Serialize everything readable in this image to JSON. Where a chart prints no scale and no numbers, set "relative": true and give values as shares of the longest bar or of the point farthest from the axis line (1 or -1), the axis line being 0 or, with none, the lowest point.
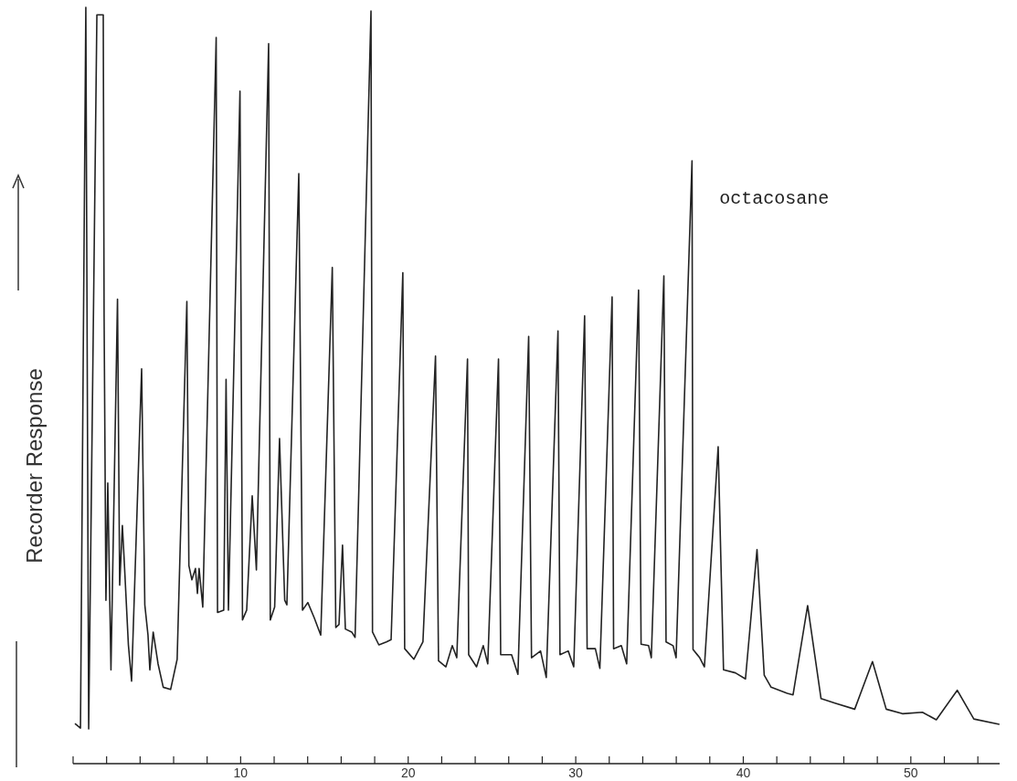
{
  "chart_data": {
    "type": "line",
    "ylabel": "Recorder Response",
    "relative": true,
    "grid": false,
    "marker": "none",
    "line_style": "solid",
    "xlim": [
      0,
      55.3
    ],
    "xticks": [
      {
        "value": 0,
        "label": null
      },
      {
        "value": 2,
        "label": null
      },
      {
        "value": 4,
        "label": null
      },
      {
        "value": 6,
        "label": null
      },
      {
        "value": 8,
        "label": null
      },
      10,
      {
        "value": 12,
        "label": null
      },
      {
        "value": 14,
        "label": null
      },
      {
        "value": 16,
        "label": null
      },
      {
        "value": 18,
        "label": null
      },
      20,
      {
        "value": 22,
        "label": null
      },
      {
        "value": 24,
        "label": null
      },
      {
        "value": 26,
        "label": null
      },
      {
        "value": 28,
        "label": null
      },
      30,
      {
        "value": 32,
        "label": null
      },
      {
        "value": 34,
        "label": null
      },
      {
        "value": 36,
        "label": null
      },
      {
        "value": 38,
        "label": null
      },
      40,
      {
        "value": 42,
        "label": null
      },
      {
        "value": 44,
        "label": null
      },
      {
        "value": 46,
        "label": null
      },
      {
        "value": 48,
        "label": null
      },
      50,
      {
        "value": 52,
        "label": null
      },
      {
        "value": 54,
        "label": null
      }
    ],
    "annotations": [
      {
        "text": "octacosane",
        "x": 36.94,
        "y": 0.797
      }
    ],
    "series": [
      {
        "color": "#222222",
        "x": [
          0.11,
          0.44,
          0.76,
          0.93,
          1.42,
          1.8,
          1.85,
          1.96,
          2.07,
          2.26,
          2.65,
          2.78,
          2.94,
          3.05,
          3.3,
          3.49,
          4.09,
          4.28,
          4.47,
          4.58,
          4.78,
          5.07,
          5.38,
          5.82,
          6.21,
          6.79,
          6.91,
          7.09,
          7.3,
          7.42,
          7.52,
          7.74,
          8.54,
          8.62,
          8.99,
          9.13,
          9.27,
          9.96,
          10.11,
          10.36,
          10.69,
          10.94,
          11.67,
          11.77,
          12.03,
          12.32,
          12.63,
          12.76,
          13.47,
          13.69,
          14.01,
          14.39,
          14.78,
          15.47,
          15.68,
          15.87,
          16.08,
          16.25,
          16.63,
          16.83,
          17.78,
          17.87,
          18.25,
          18.7,
          18.98,
          19.68,
          19.79,
          20.34,
          20.88,
          21.63,
          21.81,
          22.25,
          22.63,
          22.9,
          23.54,
          23.61,
          24.08,
          24.48,
          24.75,
          25.39,
          25.52,
          26.17,
          26.55,
          27.19,
          27.36,
          27.9,
          28.24,
          28.94,
          29.06,
          29.55,
          29.88,
          30.53,
          30.68,
          31.17,
          31.44,
          32.17,
          32.26,
          32.72,
          33.04,
          33.75,
          33.9,
          34.35,
          34.51,
          35.26,
          35.39,
          35.81,
          35.99,
          36.94,
          37.0,
          37.4,
          37.68,
          38.5,
          38.82,
          39.53,
          40.13,
          40.82,
          41.25,
          41.66,
          42.62,
          42.97,
          43.84,
          44.64,
          45.47,
          46.65,
          47.71,
          48.53,
          49.5,
          50.69,
          51.52,
          52.77,
          53.76,
          55.29
        ],
        "values": [
          0.053,
          0.047,
          1,
          0.046,
          0.99,
          0.99,
          0.593,
          0.216,
          0.371,
          0.124,
          0.614,
          0.236,
          0.315,
          0.269,
          0.157,
          0.109,
          0.522,
          0.21,
          0.17,
          0.124,
          0.174,
          0.132,
          0.101,
          0.098,
          0.138,
          0.611,
          0.262,
          0.243,
          0.258,
          0.225,
          0.258,
          0.207,
          0.96,
          0.2,
          0.203,
          0.508,
          0.203,
          0.889,
          0.19,
          0.203,
          0.354,
          0.256,
          0.952,
          0.19,
          0.207,
          0.43,
          0.216,
          0.21,
          0.78,
          0.203,
          0.213,
          0.193,
          0.17,
          0.656,
          0.18,
          0.184,
          0.289,
          0.178,
          0.174,
          0.167,
          0.995,
          0.174,
          0.157,
          0.161,
          0.164,
          0.649,
          0.152,
          0.138,
          0.161,
          0.539,
          0.136,
          0.128,
          0.156,
          0.14,
          0.535,
          0.144,
          0.128,
          0.156,
          0.132,
          0.535,
          0.144,
          0.144,
          0.118,
          0.565,
          0.14,
          0.149,
          0.114,
          0.572,
          0.144,
          0.149,
          0.128,
          0.592,
          0.152,
          0.152,
          0.126,
          0.617,
          0.152,
          0.156,
          0.132,
          0.626,
          0.158,
          0.156,
          0.14,
          0.645,
          0.161,
          0.156,
          0.14,
          0.797,
          0.151,
          0.14,
          0.128,
          0.419,
          0.124,
          0.12,
          0.112,
          0.283,
          0.117,
          0.101,
          0.093,
          0.091,
          0.209,
          0.086,
          0.08,
          0.072,
          0.135,
          0.072,
          0.066,
          0.068,
          0.058,
          0.097,
          0.059,
          0.052
        ]
      }
    ]
  }
}
